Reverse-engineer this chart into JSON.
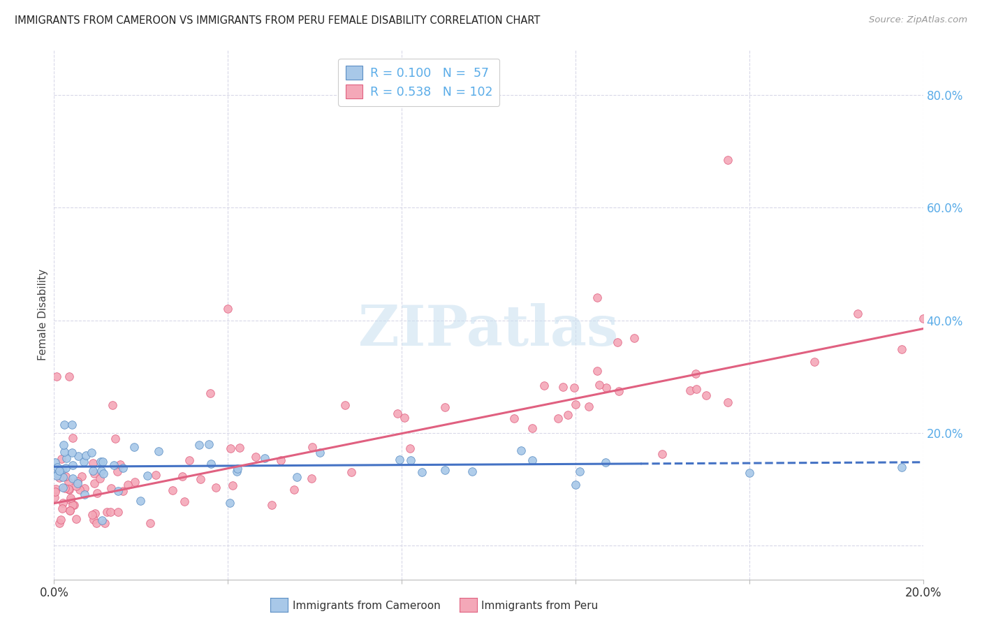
{
  "title": "IMMIGRANTS FROM CAMEROON VS IMMIGRANTS FROM PERU FEMALE DISABILITY CORRELATION CHART",
  "source": "Source: ZipAtlas.com",
  "ylabel": "Female Disability",
  "x_min": 0.0,
  "x_max": 0.2,
  "y_min": -0.06,
  "y_max": 0.88,
  "x_ticks": [
    0.0,
    0.04,
    0.08,
    0.12,
    0.16,
    0.2
  ],
  "x_tick_labels": [
    "0.0%",
    "",
    "",
    "",
    "",
    "20.0%"
  ],
  "y_ticks_right": [
    0.0,
    0.2,
    0.4,
    0.6,
    0.8
  ],
  "y_tick_labels_right": [
    "",
    "20.0%",
    "40.0%",
    "60.0%",
    "80.0%"
  ],
  "color_cameroon_fill": "#a8c8e8",
  "color_cameroon_edge": "#5b8ec4",
  "color_peru_fill": "#f4a8b8",
  "color_peru_edge": "#e06080",
  "color_line_cameroon": "#4472c4",
  "color_line_peru": "#e06080",
  "color_axis_right": "#5aace8",
  "color_axis_ticks": "#5aace8",
  "color_grid": "#d8d8e8",
  "background_color": "#ffffff",
  "cam_line_solid_end": 0.135,
  "cam_line_intercept": 0.14,
  "cam_line_slope": 0.04,
  "peru_line_intercept": 0.075,
  "peru_line_slope": 1.55,
  "legend_label1": "R = 0.100   N =  57",
  "legend_label2": "R = 0.538   N = 102",
  "bottom_label_cam": "Immigrants from Cameroon",
  "bottom_label_peru": "Immigrants from Peru",
  "watermark_text": "ZIPatlas",
  "watermark_color": "#c8dff0",
  "scatter_size": 70
}
